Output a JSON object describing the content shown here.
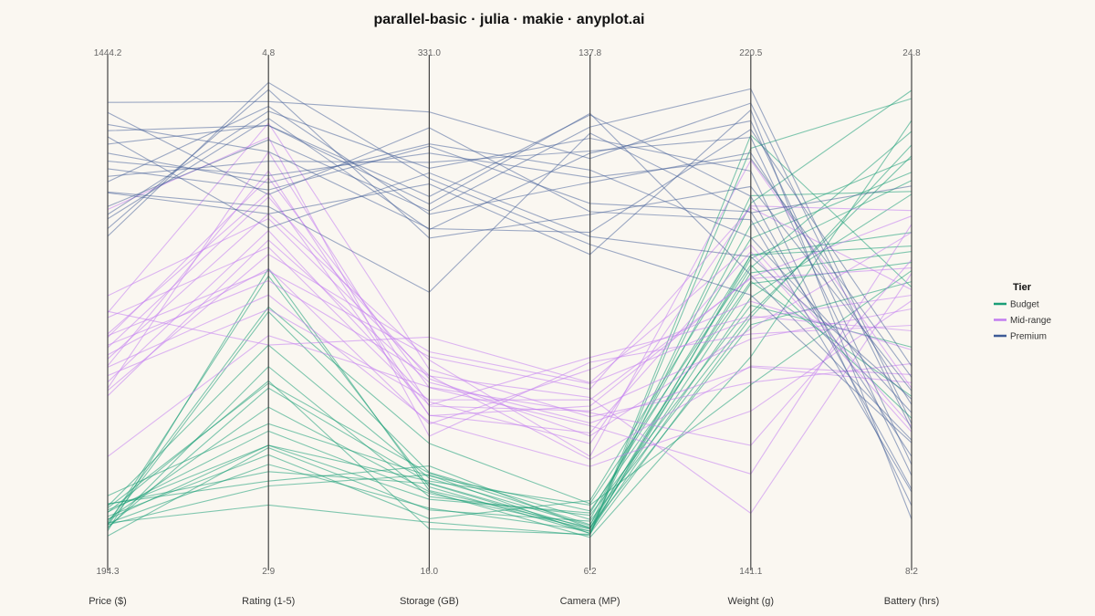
{
  "chart_data": {
    "type": "parallel-coordinates",
    "title": "parallel-basic · julia · makie · anyplot.ai",
    "axes": [
      {
        "label": "Price ($)",
        "min": 194.3,
        "max": 1444.2,
        "min_label": "194.3",
        "max_label": "1444.2"
      },
      {
        "label": "Rating (1-5)",
        "min": 2.9,
        "max": 4.8,
        "min_label": "2.9",
        "max_label": "4.8"
      },
      {
        "label": "Storage (GB)",
        "min": 16.0,
        "max": 331.0,
        "min_label": "16.0",
        "max_label": "331.0"
      },
      {
        "label": "Camera (MP)",
        "min": 6.2,
        "max": 137.8,
        "min_label": "6.2",
        "max_label": "137.8"
      },
      {
        "label": "Weight (g)",
        "min": 141.1,
        "max": 220.5,
        "min_label": "141.1",
        "max_label": "220.5"
      },
      {
        "label": "Battery (hrs)",
        "min": 8.2,
        "max": 24.8,
        "min_label": "8.2",
        "max_label": "24.8"
      }
    ],
    "legend": {
      "title": "Tier",
      "position": "right",
      "entries": [
        {
          "name": "Budget",
          "color": "#1a9e77"
        },
        {
          "name": "Mid-range",
          "color": "#c27df0"
        },
        {
          "name": "Premium",
          "color": "#3d5a96"
        }
      ]
    },
    "series": [
      {
        "name": "Budget",
        "color": "#1a9e77",
        "lines": [
          [
            236,
            3.21,
            37.0,
            8.4,
            188.5,
            23.1
          ],
          [
            232,
            3.12,
            60.2,
            7.6,
            179.8,
            22.6
          ],
          [
            225,
            3.53,
            54.4,
            9.0,
            185.7,
            18.3
          ],
          [
            283,
            3.71,
            57.8,
            9.9,
            201.1,
            20.9
          ],
          [
            255,
            3.25,
            29.7,
            17.2,
            193.6,
            21.6
          ],
          [
            237,
            3.04,
            27.2,
            7.1,
            209.4,
            24.3
          ],
          [
            222,
            3.62,
            45.0,
            12.9,
            181.9,
            15.2
          ],
          [
            312,
            3.38,
            59.4,
            14.2,
            186.1,
            13.4
          ],
          [
            246,
            3.45,
            48.5,
            6.5,
            172.9,
            23.5
          ],
          [
            288,
            3.18,
            54.1,
            8.2,
            183.3,
            20.8
          ],
          [
            273,
            3.29,
            43.1,
            13.6,
            190.7,
            19.4
          ],
          [
            230,
            3.85,
            61.8,
            11.7,
            196.0,
            22.1
          ],
          [
            278,
            3.55,
            61.3,
            10.2,
            187.6,
            18.7
          ],
          [
            215,
            4.03,
            49.3,
            9.4,
            178.5,
            17.6
          ],
          [
            246,
            3.29,
            55.8,
            15.9,
            168.0,
            18.0
          ],
          [
            266,
            3.56,
            22.6,
            7.4,
            211.7,
            17.4
          ],
          [
            290,
            3.14,
            66.3,
            9.2,
            190.1,
            21.3
          ],
          [
            201,
            3.28,
            35.8,
            11.2,
            180.5,
            22.2
          ],
          [
            267,
            3.35,
            47.3,
            8.9,
            199.8,
            24.6
          ],
          [
            238,
            3.87,
            82.0,
            16.3,
            189.0,
            12.6
          ],
          [
            232,
            4.0,
            51.8,
            7.7,
            190.7,
            18.9
          ]
        ]
      },
      {
        "name": "Mid-range",
        "color": "#c27df0",
        "lines": [
          [
            753,
            4.02,
            142.2,
            49.5,
            199.0,
            17.3
          ],
          [
            720,
            4.33,
            126.9,
            35.9,
            177.8,
            19.4
          ],
          [
            803,
            4.12,
            108.6,
            58.7,
            180.0,
            15.8
          ],
          [
            666,
            3.92,
            97.0,
            27.1,
            163.4,
            16.9
          ],
          [
            587,
            4.15,
            124.4,
            39.7,
            171.1,
            13.9
          ],
          [
            820,
            3.71,
            155.8,
            51.4,
            192.5,
            12.3
          ],
          [
            608,
            4.52,
            107.9,
            43.2,
            176.0,
            16.6
          ],
          [
            689,
            4.26,
            139.9,
            30.0,
            207.3,
            13.7
          ],
          [
            643,
            3.86,
            112.3,
            46.4,
            186.6,
            18.1
          ],
          [
            748,
            4.41,
            120.7,
            38.9,
            152.4,
            19.7
          ],
          [
            700,
            4.03,
            95.4,
            55.2,
            182.6,
            15.1
          ],
          [
            816,
            4.64,
            133.4,
            41.5,
            168.4,
            14.6
          ],
          [
            625,
            4.19,
            110.9,
            33.7,
            199.3,
            20.2
          ],
          [
            727,
            3.98,
            128.8,
            47.1,
            145.5,
            17.9
          ],
          [
            758,
            4.35,
            101.5,
            36.8,
            191.3,
            12.1
          ],
          [
            602,
            4.09,
            145.6,
            51.1,
            179.6,
            17.1
          ],
          [
            863,
            4.24,
            129.2,
            29.1,
            171.3,
            14.2
          ],
          [
            670,
            4.44,
            101.2,
            44.6,
            186.8,
            20.0
          ],
          [
            1101,
            4.58,
            87.0,
            57.3,
            176.9,
            16.0
          ],
          [
            420,
            3.75,
            121.0,
            42.7,
            157.4,
            18.4
          ]
        ]
      },
      {
        "name": "Premium",
        "color": "#3d5a96",
        "lines": [
          [
            1396,
            4.73,
            312.2,
            116.4,
            217.3,
            12.2
          ],
          [
            1281,
            4.63,
            253.4,
            129.1,
            201.0,
            10.0
          ],
          [
            1177,
            4.71,
            241.1,
            109.5,
            208.6,
            13.1
          ],
          [
            1213,
            4.36,
            288.4,
            103.4,
            198.3,
            11.2
          ],
          [
            1335,
            4.52,
            231.2,
            95.0,
            212.7,
            14.5
          ],
          [
            1087,
            4.69,
            273.1,
            122.3,
            205.4,
            9.4
          ],
          [
            1256,
            4.39,
            290.0,
            113.1,
            193.8,
            12.8
          ],
          [
            1147,
            4.26,
            262.2,
            88.6,
            216.1,
            8.9
          ],
          [
            1318,
            4.63,
            248.2,
            129.5,
            187.2,
            11.8
          ],
          [
            1048,
            4.78,
            224.6,
            100.2,
            202.7,
            13.6
          ],
          [
            1192,
            4.48,
            277.2,
            118.6,
            211.3,
            10.5
          ],
          [
            1368,
            4.34,
            301.2,
            101.0,
            196.9,
            9.9
          ],
          [
            1109,
            4.57,
            243.4,
            125.6,
            219.8,
            12.4
          ],
          [
            1027,
            4.81,
            266.0,
            91.5,
            183.7,
            11.7
          ],
          [
            1234,
            4.42,
            283.6,
            110.9,
            207.6,
            14.1
          ],
          [
            1149,
            4.29,
            187.0,
            123.8,
            198.1,
            21.1
          ],
          [
            1301,
            4.2,
            269.9,
            93.8,
            190.4,
            13.3
          ],
          [
            1075,
            4.66,
            230.5,
            118.0,
            214.2,
            10.9
          ]
        ]
      }
    ]
  }
}
